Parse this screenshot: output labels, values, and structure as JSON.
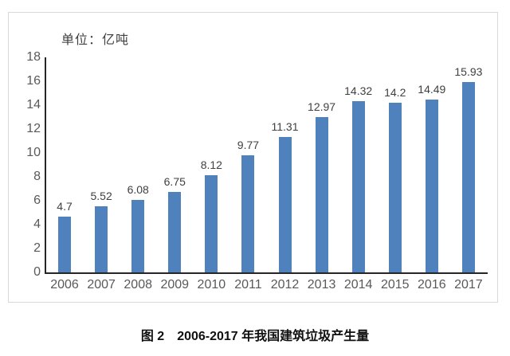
{
  "figure": {
    "caption": "图 2　2006-2017 年我国建筑垃圾产生量"
  },
  "chart_data": {
    "type": "bar",
    "title": "",
    "unit_label": "单位：亿吨",
    "categories": [
      "2006",
      "2007",
      "2008",
      "2009",
      "2010",
      "2011",
      "2012",
      "2013",
      "2014",
      "2015",
      "2016",
      "2017"
    ],
    "values": [
      4.7,
      5.52,
      6.08,
      6.75,
      8.12,
      9.77,
      11.31,
      12.97,
      14.32,
      14.2,
      14.49,
      15.93
    ],
    "value_labels": [
      "4.7",
      "5.52",
      "6.08",
      "6.75",
      "8.12",
      "9.77",
      "11.31",
      "12.97",
      "14.32",
      "14.2",
      "14.49",
      "15.93"
    ],
    "xlabel": "",
    "ylabel": "",
    "ylim": [
      0,
      18
    ],
    "yticks": [
      0,
      2,
      4,
      6,
      8,
      10,
      12,
      14,
      16,
      18
    ],
    "grid": false,
    "legend": "none",
    "bar_color": "#4f81bd",
    "axis_color": "#262626",
    "tick_label_color": "#595959",
    "data_label_color": "#404040",
    "frame_border_color": "#d9d9d9"
  }
}
